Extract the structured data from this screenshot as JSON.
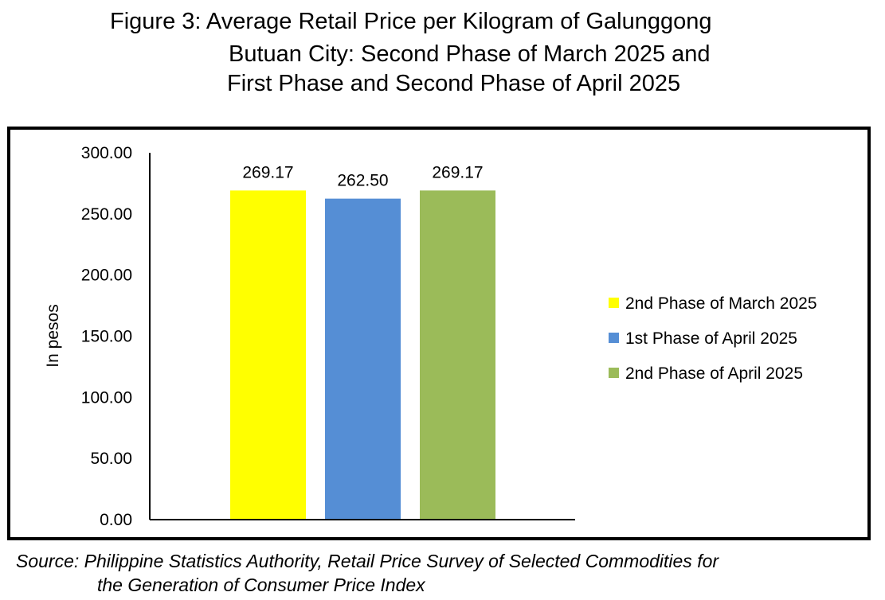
{
  "title": {
    "line1": "Figure 3: Average Retail Price per Kilogram of Galunggong",
    "line2": "Butuan City: Second Phase of March 2025 and",
    "line3": "First Phase and Second Phase of April 2025"
  },
  "source": {
    "line1": "Source: Philippine Statistics Authority, Retail Price Survey of Selected Commodities for",
    "line2": "the Generation of Consumer Price Index"
  },
  "chart_data": {
    "type": "bar",
    "categories": [
      "2nd Phase of March 2025",
      "1st Phase of April 2025",
      "2nd Phase of April 2025"
    ],
    "values": [
      269.17,
      262.5,
      269.17
    ],
    "data_labels": [
      "269.17",
      "262.50",
      "269.17"
    ],
    "colors": [
      "#FFFF00",
      "#558ED5",
      "#9BBB59"
    ],
    "ylabel": "In pesos",
    "ylim": [
      0,
      300
    ],
    "yticks": [
      0,
      50,
      100,
      150,
      200,
      250,
      300
    ],
    "ytick_labels": [
      "0.00",
      "50.00",
      "100.00",
      "150.00",
      "200.00",
      "250.00",
      "300.00"
    ],
    "grid": false,
    "legend_position": "right"
  }
}
